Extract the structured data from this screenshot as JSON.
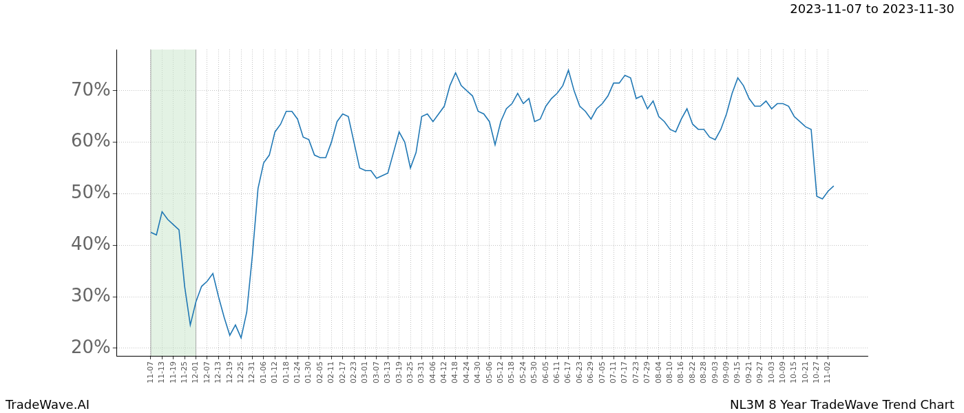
{
  "chart_data": {
    "type": "line",
    "title": "2023-11-07 to 2023-11-30",
    "annotations": [
      {
        "text": "TradeWave.AI",
        "position": "bottom-left"
      },
      {
        "text": "NL3M 8 Year TradeWave Trend Chart",
        "position": "bottom-right"
      }
    ],
    "highlight": {
      "from": "11-07",
      "to": "12-01",
      "color": "#c8e6c9"
    },
    "categories": [
      null,
      null,
      null,
      null,
      null,
      null,
      "11-07",
      null,
      "11-13",
      null,
      "11-19",
      null,
      "11-25",
      null,
      "12-01",
      null,
      "12-07",
      null,
      "12-13",
      null,
      "12-19",
      null,
      "12-25",
      null,
      "12-31",
      null,
      "01-06",
      null,
      "01-12",
      null,
      "01-18",
      null,
      "01-24",
      null,
      "01-30",
      null,
      "02-05",
      null,
      "02-11",
      null,
      "02-17",
      null,
      "02-23",
      null,
      "03-01",
      null,
      "03-07",
      null,
      "03-13",
      null,
      "03-19",
      null,
      "03-25",
      null,
      "03-31",
      null,
      "04-06",
      null,
      "04-12",
      null,
      "04-18",
      null,
      "04-24",
      null,
      "04-30",
      null,
      "05-06",
      null,
      "05-12",
      null,
      "05-18",
      null,
      "05-24",
      null,
      "05-30",
      null,
      "06-05",
      null,
      "06-11",
      null,
      "06-17",
      null,
      "06-23",
      null,
      "06-29",
      null,
      "07-05",
      null,
      "07-11",
      null,
      "07-17",
      null,
      "07-23",
      null,
      "07-29",
      null,
      "08-04",
      null,
      "08-10",
      null,
      "08-16",
      null,
      "08-22",
      null,
      "08-28",
      null,
      "09-03",
      null,
      "09-09",
      null,
      "09-15",
      null,
      "09-21",
      null,
      "09-27",
      null,
      "10-03",
      null,
      "10-09",
      null,
      "10-15",
      null,
      "10-21",
      null,
      "10-27",
      null,
      "11-02",
      null,
      null,
      null,
      null,
      null,
      null,
      null
    ],
    "values": [
      null,
      null,
      null,
      null,
      null,
      null,
      42.5,
      42,
      46.5,
      45,
      44,
      43,
      32,
      24.5,
      29,
      32,
      33,
      34.5,
      30,
      26,
      22.5,
      24.5,
      22,
      27,
      38,
      51,
      56,
      57.5,
      62,
      63.5,
      66,
      66,
      64.5,
      61,
      60.5,
      57.5,
      57,
      57,
      60,
      64,
      65.5,
      65,
      60,
      55,
      54.5,
      54.5,
      53,
      53.5,
      54,
      58,
      62,
      60,
      55,
      58,
      65,
      65.5,
      64,
      65.5,
      67,
      71,
      73.5,
      71,
      70,
      69,
      66,
      65.5,
      64,
      59.5,
      64,
      66.5,
      67.5,
      69.5,
      67.5,
      68.5,
      64,
      64.5,
      67,
      68.5,
      69.5,
      71,
      74,
      70,
      67,
      66,
      64.5,
      66.5,
      67.5,
      69,
      71.5,
      71.5,
      73,
      72.5,
      68.5,
      69,
      66.5,
      68,
      65,
      64,
      62.5,
      62,
      64.5,
      66.5,
      63.5,
      62.5,
      62.5,
      61,
      60.5,
      62.5,
      65.5,
      69.5,
      72.5,
      71,
      68.5,
      67,
      67,
      68,
      66.5,
      67.5,
      67.5,
      67,
      65,
      64,
      63,
      62.5,
      49.5,
      49,
      50.5,
      51.5,
      null,
      null,
      null,
      null,
      null,
      null
    ],
    "color": "#1f77b4",
    "ylim": [
      18.5,
      78
    ],
    "yticks": [
      {
        "value": 20,
        "label": "20%"
      },
      {
        "value": 30,
        "label": "30%"
      },
      {
        "value": 40,
        "label": "40%"
      },
      {
        "value": 50,
        "label": "50%"
      },
      {
        "value": 60,
        "label": "60%"
      },
      {
        "value": 70,
        "label": "70%"
      }
    ],
    "grid": true
  }
}
